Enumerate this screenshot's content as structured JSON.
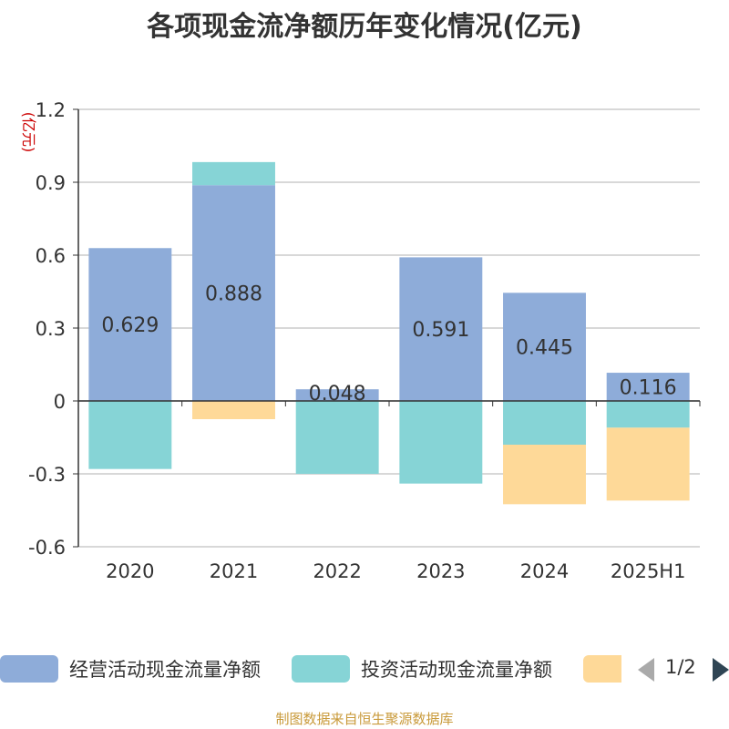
{
  "chart_data": {
    "type": "bar",
    "stacked": true,
    "title": "各项现金流净额历年变化情况(亿元)",
    "ylabel": "(亿元)",
    "ylim": [
      -0.6,
      1.2
    ],
    "yticks": [
      -0.6,
      -0.3,
      0,
      0.3,
      0.6,
      0.9,
      1.2
    ],
    "ytick_labels": [
      "-0.6",
      "-0.3",
      "0",
      "0.3",
      "0.6",
      "0.9",
      "1.2"
    ],
    "grid": true,
    "legend_position": "bottom",
    "categories": [
      "2020",
      "2021",
      "2022",
      "2023",
      "2024",
      "2025H1"
    ],
    "series": [
      {
        "name": "经营活动现金流量净额",
        "color": "#8eacd9",
        "values": [
          0.629,
          0.888,
          0.048,
          0.591,
          0.445,
          0.116
        ],
        "labels": [
          "0.629",
          "0.888",
          "0.048",
          "0.591",
          "0.445",
          "0.116"
        ]
      },
      {
        "name": "投资活动现金流量净额",
        "color": "#86d4d6",
        "values": [
          -0.28,
          0.095,
          -0.3,
          -0.34,
          -0.18,
          -0.11
        ]
      },
      {
        "name": "",
        "color": "#fed998",
        "values": [
          0,
          -0.075,
          0,
          0,
          -0.245,
          -0.3
        ]
      }
    ]
  },
  "legend": {
    "items": [
      {
        "label": "经营活动现金流量净额",
        "color": "#8eacd9"
      },
      {
        "label": "投资活动现金流量净额",
        "color": "#86d4d6"
      },
      {
        "label": "",
        "color": "#fed998"
      }
    ],
    "page_indicator": "1/2"
  },
  "footer": {
    "source": "制图数据来自恒生聚源数据库"
  }
}
